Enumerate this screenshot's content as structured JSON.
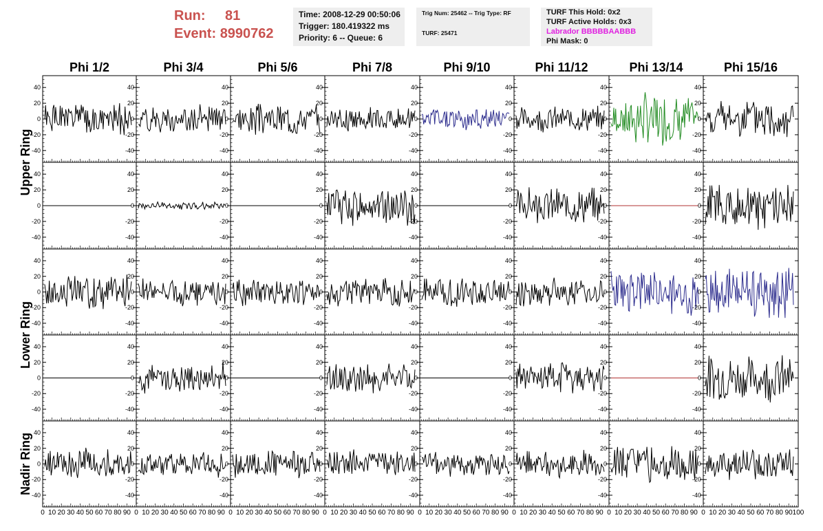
{
  "header": {
    "run_label": "Run:",
    "run_value": "81",
    "event_label": "Event:",
    "event_value": "8990762",
    "time": "Time: 2008-12-29 00:50:06",
    "trigger": "Trigger: 180.419322 ms",
    "priority": "Priority: 6 -- Queue: 6",
    "trig_num": "Trig Num: 25462 -- Trig Type: RF",
    "turf": "TURF: 25471",
    "turf_this_hold": "TURF This Hold: 0x2",
    "turf_active_holds": "TURF Active Holds: 0x3",
    "labrador": "Labrador BBBBBAABBB",
    "phi_mask": "Phi Mask: 0"
  },
  "colors": {
    "run_text": "#c9524f",
    "labrador_text": "#e020e0",
    "trace_default": "#000000",
    "trace_blue": "#2a2a8c",
    "trace_green": "#1f8a1f",
    "trace_flat_red": "#b03030"
  },
  "chart_data": {
    "type": "line",
    "columns": [
      "Phi 1/2",
      "Phi 3/4",
      "Phi 5/6",
      "Phi 7/8",
      "Phi 9/10",
      "Phi 11/12",
      "Phi 13/14",
      "Phi 15/16"
    ],
    "rows": [
      {
        "label": "Upper Ring",
        "label_rows": [
          0,
          1
        ]
      },
      {
        "label": "Lower Ring",
        "label_rows": [
          2,
          3
        ]
      },
      {
        "label": "Nadir Ring",
        "label_rows": [
          4
        ]
      }
    ],
    "ylim": [
      -55,
      55
    ],
    "yticks": [
      -40,
      -20,
      0,
      20,
      40
    ],
    "xlim": [
      0,
      100
    ],
    "xtick_labels": [
      "0",
      "10",
      "20",
      "30",
      "40",
      "50",
      "60",
      "70",
      "80",
      "90",
      "100"
    ],
    "samples": 96,
    "panels": [
      [
        {
          "amp": 16,
          "color": "black",
          "seed": 1
        },
        {
          "amp": 14,
          "color": "black",
          "seed": 2
        },
        {
          "amp": 16,
          "color": "black",
          "seed": 3
        },
        {
          "amp": 13,
          "color": "black",
          "seed": 4
        },
        {
          "amp": 14,
          "color": "blue",
          "seed": 5,
          "burst": true
        },
        {
          "amp": 13,
          "color": "black",
          "seed": 6
        },
        {
          "amp": 28,
          "color": "green",
          "seed": 7,
          "burst": true
        },
        {
          "amp": 20,
          "color": "black",
          "seed": 8
        }
      ],
      [
        {
          "amp": 0,
          "color": "black",
          "seed": 9
        },
        {
          "amp": 4,
          "color": "black",
          "seed": 10
        },
        {
          "amp": 0,
          "color": "black",
          "seed": 11
        },
        {
          "amp": 20,
          "color": "black",
          "seed": 12
        },
        {
          "amp": 0,
          "color": "black",
          "seed": 13
        },
        {
          "amp": 18,
          "color": "black",
          "seed": 14
        },
        {
          "amp": 0,
          "color": "red",
          "seed": 15
        },
        {
          "amp": 24,
          "color": "black",
          "seed": 16
        }
      ],
      [
        {
          "amp": 18,
          "color": "black",
          "seed": 17
        },
        {
          "amp": 14,
          "color": "black",
          "seed": 18
        },
        {
          "amp": 14,
          "color": "black",
          "seed": 19
        },
        {
          "amp": 14,
          "color": "black",
          "seed": 20
        },
        {
          "amp": 15,
          "color": "black",
          "seed": 21
        },
        {
          "amp": 15,
          "color": "black",
          "seed": 22
        },
        {
          "amp": 24,
          "color": "blue",
          "seed": 23
        },
        {
          "amp": 26,
          "color": "blue",
          "seed": 24
        }
      ],
      [
        {
          "amp": 0,
          "color": "black",
          "seed": 25
        },
        {
          "amp": 16,
          "color": "black",
          "seed": 26
        },
        {
          "amp": 0,
          "color": "black",
          "seed": 27
        },
        {
          "amp": 16,
          "color": "black",
          "seed": 28
        },
        {
          "amp": 0,
          "color": "black",
          "seed": 29
        },
        {
          "amp": 16,
          "color": "black",
          "seed": 30
        },
        {
          "amp": 0,
          "color": "red",
          "seed": 31
        },
        {
          "amp": 24,
          "color": "black",
          "seed": 32
        }
      ],
      [
        {
          "amp": 16,
          "color": "black",
          "seed": 33
        },
        {
          "amp": 14,
          "color": "black",
          "seed": 34
        },
        {
          "amp": 14,
          "color": "black",
          "seed": 35
        },
        {
          "amp": 14,
          "color": "black",
          "seed": 36
        },
        {
          "amp": 13,
          "color": "black",
          "seed": 37
        },
        {
          "amp": 14,
          "color": "black",
          "seed": 38
        },
        {
          "amp": 18,
          "color": "black",
          "seed": 39
        },
        {
          "amp": 16,
          "color": "black",
          "seed": 40
        }
      ]
    ]
  }
}
